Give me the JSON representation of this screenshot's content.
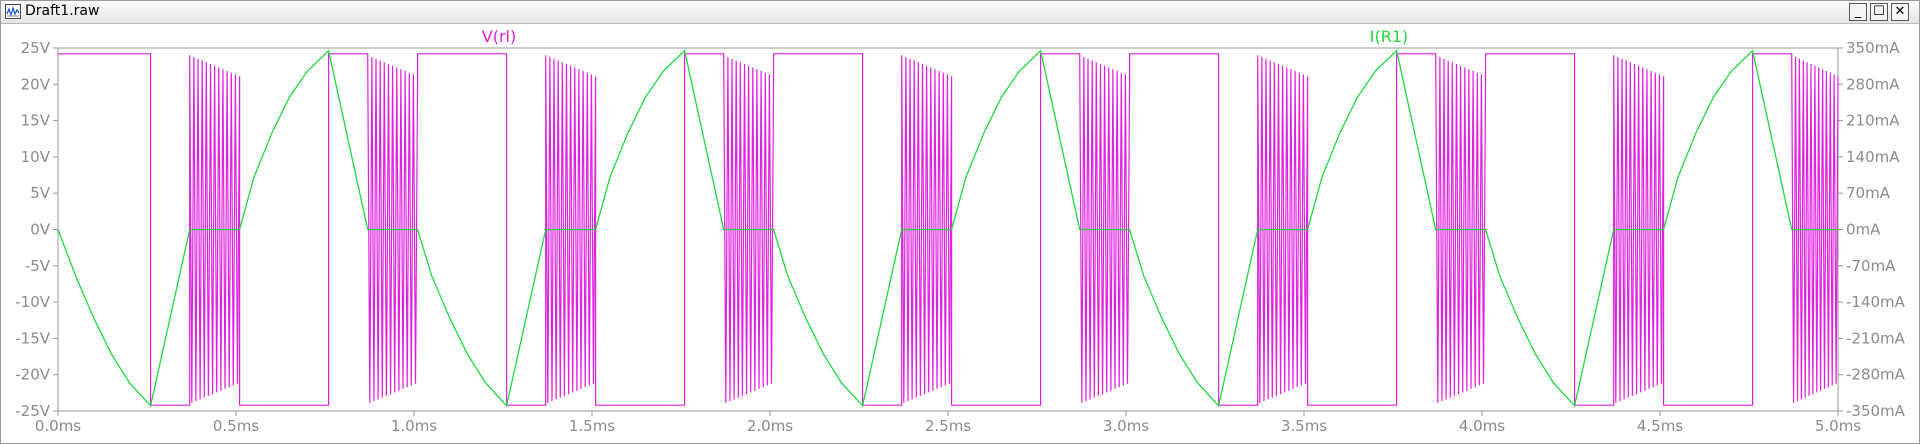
{
  "window": {
    "title": "Draft1.raw",
    "buttons": {
      "minimize": "_",
      "maximize": "☐",
      "close": "✕"
    }
  },
  "chart_data": {
    "type": "line",
    "x_unit": "ms",
    "xlim": [
      0.0,
      5.0
    ],
    "x_ticks": [
      0.0,
      0.5,
      1.0,
      1.5,
      2.0,
      2.5,
      3.0,
      3.5,
      4.0,
      4.5,
      5.0
    ],
    "x_tick_labels": [
      "0.0ms",
      "0.5ms",
      "1.0ms",
      "1.5ms",
      "2.0ms",
      "2.5ms",
      "3.0ms",
      "3.5ms",
      "4.0ms",
      "4.5ms",
      "5.0ms"
    ],
    "left_axis": {
      "unit": "V",
      "ylim": [
        -25,
        25
      ],
      "ticks": [
        25,
        20,
        15,
        10,
        5,
        0,
        -5,
        -10,
        -15,
        -20,
        -25
      ],
      "tick_labels": [
        "25V",
        "20V",
        "15V",
        "10V",
        "5V",
        "0V",
        "-5V",
        "-10V",
        "-15V",
        "-20V",
        "-25V"
      ]
    },
    "right_axis": {
      "unit": "mA",
      "ylim": [
        -350,
        350
      ],
      "ticks": [
        350,
        280,
        210,
        140,
        70,
        0,
        -70,
        -140,
        -210,
        -280,
        -350
      ],
      "tick_labels": [
        "350mA",
        "280mA",
        "210mA",
        "140mA",
        "70mA",
        "0mA",
        "-70mA",
        "-140mA",
        "-210mA",
        "-280mA",
        "-350mA"
      ]
    },
    "grid": false,
    "series": [
      {
        "name": "V(rl)",
        "axis": "left",
        "color": "#e020e0",
        "description_segments": [
          {
            "x": [
              0.0,
              0.26
            ],
            "y": 24.2,
            "kind": "flat"
          },
          {
            "x": [
              0.26,
              0.37
            ],
            "y": -24.2,
            "kind": "flat"
          },
          {
            "x": [
              0.37,
              0.51
            ],
            "y": [
              -24,
              24
            ],
            "kind": "ringing"
          },
          {
            "x": [
              0.51,
              0.76
            ],
            "y": -24.2,
            "kind": "flat"
          },
          {
            "x": [
              0.76,
              0.87
            ],
            "y": 24.2,
            "kind": "flat"
          },
          {
            "x": [
              0.87,
              1.01
            ],
            "y": [
              -24,
              24
            ],
            "kind": "ringing"
          },
          {
            "x": [
              1.01,
              1.26
            ],
            "y": 24.2,
            "kind": "flat"
          },
          {
            "x": [
              1.26,
              1.37
            ],
            "y": -24.2,
            "kind": "flat"
          },
          {
            "x": [
              1.37,
              1.51
            ],
            "y": [
              -24,
              24
            ],
            "kind": "ringing"
          },
          {
            "x": [
              1.51,
              1.76
            ],
            "y": -24.2,
            "kind": "flat"
          },
          {
            "x": [
              1.76,
              1.87
            ],
            "y": 24.2,
            "kind": "flat"
          },
          {
            "x": [
              1.87,
              2.01
            ],
            "y": [
              -24,
              24
            ],
            "kind": "ringing"
          },
          {
            "x": [
              2.01,
              2.26
            ],
            "y": 24.2,
            "kind": "flat"
          },
          {
            "x": [
              2.26,
              2.37
            ],
            "y": -24.2,
            "kind": "flat"
          },
          {
            "x": [
              2.37,
              2.51
            ],
            "y": [
              -24,
              24
            ],
            "kind": "ringing"
          },
          {
            "x": [
              2.51,
              2.76
            ],
            "y": -24.2,
            "kind": "flat"
          },
          {
            "x": [
              2.76,
              2.87
            ],
            "y": 24.2,
            "kind": "flat"
          },
          {
            "x": [
              2.87,
              3.01
            ],
            "y": [
              -24,
              24
            ],
            "kind": "ringing"
          },
          {
            "x": [
              3.01,
              3.26
            ],
            "y": 24.2,
            "kind": "flat"
          },
          {
            "x": [
              3.26,
              3.37
            ],
            "y": -24.2,
            "kind": "flat"
          },
          {
            "x": [
              3.37,
              3.51
            ],
            "y": [
              -24,
              24
            ],
            "kind": "ringing"
          },
          {
            "x": [
              3.51,
              3.76
            ],
            "y": -24.2,
            "kind": "flat"
          },
          {
            "x": [
              3.76,
              3.87
            ],
            "y": 24.2,
            "kind": "flat"
          },
          {
            "x": [
              3.87,
              4.01
            ],
            "y": [
              -24,
              24
            ],
            "kind": "ringing"
          },
          {
            "x": [
              4.01,
              4.26
            ],
            "y": 24.2,
            "kind": "flat"
          },
          {
            "x": [
              4.26,
              4.37
            ],
            "y": -24.2,
            "kind": "flat"
          },
          {
            "x": [
              4.37,
              4.51
            ],
            "y": [
              -24,
              24
            ],
            "kind": "ringing"
          },
          {
            "x": [
              4.51,
              4.76
            ],
            "y": -24.2,
            "kind": "flat"
          },
          {
            "x": [
              4.76,
              4.87
            ],
            "y": 24.2,
            "kind": "flat"
          },
          {
            "x": [
              4.87,
              5.0
            ],
            "y": [
              -24,
              24
            ],
            "kind": "ringing"
          }
        ]
      },
      {
        "name": "I(R1)",
        "axis": "right",
        "color": "#20d840",
        "points": [
          [
            0.0,
            0
          ],
          [
            0.05,
            -90
          ],
          [
            0.1,
            -170
          ],
          [
            0.15,
            -240
          ],
          [
            0.2,
            -295
          ],
          [
            0.26,
            -340
          ],
          [
            0.37,
            0
          ],
          [
            0.51,
            0
          ],
          [
            0.55,
            100
          ],
          [
            0.6,
            185
          ],
          [
            0.65,
            255
          ],
          [
            0.7,
            305
          ],
          [
            0.76,
            345
          ],
          [
            0.87,
            0
          ],
          [
            1.01,
            0
          ],
          [
            1.05,
            -90
          ],
          [
            1.1,
            -170
          ],
          [
            1.15,
            -240
          ],
          [
            1.2,
            -295
          ],
          [
            1.26,
            -340
          ],
          [
            1.37,
            0
          ],
          [
            1.51,
            0
          ],
          [
            1.55,
            100
          ],
          [
            1.6,
            185
          ],
          [
            1.65,
            255
          ],
          [
            1.7,
            305
          ],
          [
            1.76,
            345
          ],
          [
            1.87,
            0
          ],
          [
            2.01,
            0
          ],
          [
            2.05,
            -90
          ],
          [
            2.1,
            -170
          ],
          [
            2.15,
            -240
          ],
          [
            2.2,
            -295
          ],
          [
            2.26,
            -340
          ],
          [
            2.37,
            0
          ],
          [
            2.51,
            0
          ],
          [
            2.55,
            100
          ],
          [
            2.6,
            185
          ],
          [
            2.65,
            255
          ],
          [
            2.7,
            305
          ],
          [
            2.76,
            345
          ],
          [
            2.87,
            0
          ],
          [
            3.01,
            0
          ],
          [
            3.05,
            -90
          ],
          [
            3.1,
            -170
          ],
          [
            3.15,
            -240
          ],
          [
            3.2,
            -295
          ],
          [
            3.26,
            -340
          ],
          [
            3.37,
            0
          ],
          [
            3.51,
            0
          ],
          [
            3.55,
            100
          ],
          [
            3.6,
            185
          ],
          [
            3.65,
            255
          ],
          [
            3.7,
            305
          ],
          [
            3.76,
            345
          ],
          [
            3.87,
            0
          ],
          [
            4.01,
            0
          ],
          [
            4.05,
            -90
          ],
          [
            4.1,
            -170
          ],
          [
            4.15,
            -240
          ],
          [
            4.2,
            -295
          ],
          [
            4.26,
            -340
          ],
          [
            4.37,
            0
          ],
          [
            4.51,
            0
          ],
          [
            4.55,
            100
          ],
          [
            4.6,
            185
          ],
          [
            4.65,
            255
          ],
          [
            4.7,
            305
          ],
          [
            4.76,
            345
          ],
          [
            4.87,
            0
          ],
          [
            5.0,
            0
          ]
        ]
      }
    ]
  }
}
